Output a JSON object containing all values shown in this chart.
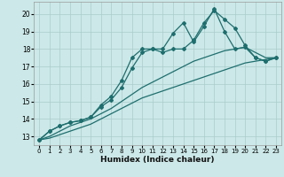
{
  "bg_color": "#cce8e8",
  "grid_color": "#aacccc",
  "line_color": "#1e6e6e",
  "xlabel": "Humidex (Indice chaleur)",
  "xlim": [
    -0.5,
    23.5
  ],
  "ylim": [
    12.5,
    20.7
  ],
  "yticks": [
    13,
    14,
    15,
    16,
    17,
    18,
    19,
    20
  ],
  "xticks": [
    0,
    1,
    2,
    3,
    4,
    5,
    6,
    7,
    8,
    9,
    10,
    11,
    12,
    13,
    14,
    15,
    16,
    17,
    18,
    19,
    20,
    21,
    22,
    23
  ],
  "line1_x": [
    0,
    1,
    2,
    3,
    4,
    5,
    6,
    7,
    8,
    9,
    10,
    11,
    12,
    13,
    14,
    15,
    16,
    17,
    18,
    19,
    20,
    21,
    22,
    23
  ],
  "line1_y": [
    12.8,
    13.3,
    13.6,
    13.8,
    13.9,
    14.1,
    14.8,
    15.3,
    16.2,
    17.5,
    18.0,
    18.0,
    18.0,
    18.9,
    19.5,
    18.4,
    19.3,
    20.3,
    19.0,
    18.0,
    18.1,
    17.5,
    17.3,
    17.5
  ],
  "line2_x": [
    0,
    1,
    2,
    3,
    4,
    5,
    6,
    7,
    8,
    9,
    10,
    11,
    12,
    13,
    14,
    15,
    16,
    17,
    18,
    19,
    20,
    21,
    22,
    23
  ],
  "line2_y": [
    12.8,
    13.3,
    13.6,
    13.8,
    13.9,
    14.1,
    14.7,
    15.1,
    15.8,
    16.9,
    17.8,
    18.0,
    17.8,
    18.0,
    18.0,
    18.5,
    19.5,
    20.2,
    19.7,
    19.2,
    18.2,
    17.5,
    17.3,
    17.5
  ],
  "line3_x": [
    0,
    23
  ],
  "line3_y": [
    12.8,
    17.5
  ],
  "line4_x": [
    0,
    23
  ],
  "line4_y": [
    12.8,
    17.5
  ],
  "smooth3_x": [
    0,
    1,
    2,
    3,
    4,
    5,
    6,
    7,
    8,
    9,
    10,
    11,
    12,
    13,
    14,
    15,
    16,
    17,
    18,
    19,
    20,
    21,
    22,
    23
  ],
  "smooth3_y": [
    12.8,
    13.0,
    13.3,
    13.6,
    13.8,
    14.0,
    14.3,
    14.6,
    15.0,
    15.4,
    15.8,
    16.1,
    16.4,
    16.7,
    17.0,
    17.3,
    17.5,
    17.7,
    17.9,
    18.0,
    18.1,
    17.8,
    17.5,
    17.5
  ],
  "smooth4_x": [
    0,
    1,
    2,
    3,
    4,
    5,
    6,
    7,
    8,
    9,
    10,
    11,
    12,
    13,
    14,
    15,
    16,
    17,
    18,
    19,
    20,
    21,
    22,
    23
  ],
  "smooth4_y": [
    12.8,
    12.9,
    13.1,
    13.3,
    13.5,
    13.7,
    14.0,
    14.3,
    14.6,
    14.9,
    15.2,
    15.4,
    15.6,
    15.8,
    16.0,
    16.2,
    16.4,
    16.6,
    16.8,
    17.0,
    17.2,
    17.3,
    17.4,
    17.5
  ]
}
